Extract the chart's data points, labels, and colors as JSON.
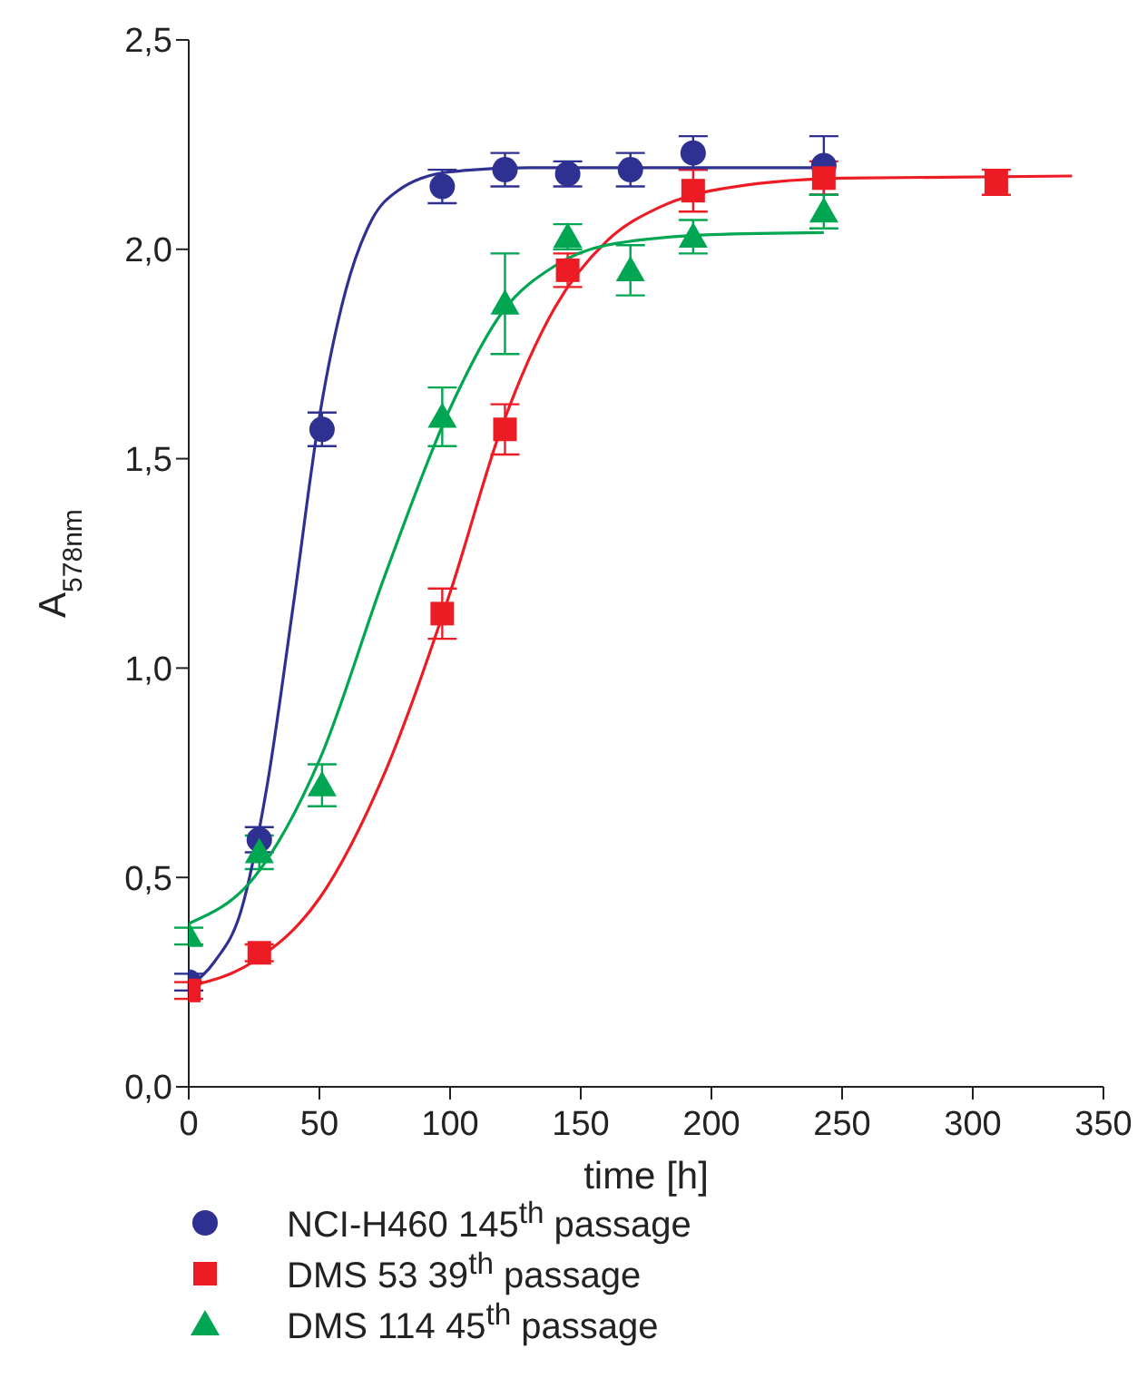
{
  "chart_data": {
    "type": "scatter",
    "xlabel": "time [h]",
    "ylabel": "A$_{578nm}$",
    "xlim": [
      0,
      350
    ],
    "xticks": [
      0,
      50,
      100,
      150,
      200,
      250,
      300,
      350
    ],
    "ylim": [
      0,
      2.5
    ],
    "yticks": [
      {
        "value": 0,
        "label": "0,0"
      },
      {
        "value": 0.5,
        "label": "0,5"
      },
      {
        "value": 1,
        "label": "1,0"
      },
      {
        "value": 1.5,
        "label": "1,5"
      },
      {
        "value": 2,
        "label": "2,0"
      },
      {
        "value": 2.5,
        "label": "2,5"
      }
    ],
    "grid": false,
    "legend": "bottom",
    "series": [
      {
        "name": "NCI-H460 145$^{th}$ passage",
        "color": "#2e3192",
        "marker": "circle",
        "x": [
          0,
          27,
          51,
          97,
          121,
          145,
          169,
          193,
          243
        ],
        "values": [
          0.25,
          0.59,
          1.57,
          2.15,
          2.19,
          2.18,
          2.19,
          2.23,
          2.2
        ],
        "errors": [
          0.02,
          0.03,
          0.04,
          0.04,
          0.04,
          0.03,
          0.04,
          0.04,
          0.07
        ]
      },
      {
        "name": "DMS 53 39$^{th}$ passage",
        "color": "#ed1c24",
        "marker": "square",
        "x": [
          0,
          27,
          97,
          121,
          145,
          193,
          243,
          309
        ],
        "values": [
          0.23,
          0.32,
          1.13,
          1.57,
          1.95,
          2.14,
          2.17,
          2.16
        ],
        "errors": [
          0.02,
          0.02,
          0.06,
          0.06,
          0.04,
          0.05,
          0.04,
          0.03
        ]
      },
      {
        "name": "DMS 114 45$^{th}$ passage",
        "color": "#00a651",
        "marker": "triangle",
        "x": [
          0,
          27,
          51,
          97,
          121,
          145,
          169,
          193,
          243
        ],
        "values": [
          0.36,
          0.56,
          0.72,
          1.6,
          1.87,
          2.03,
          1.95,
          2.03,
          2.09
        ],
        "errors": [
          0.02,
          0.04,
          0.05,
          0.07,
          0.12,
          0.03,
          0.06,
          0.04,
          0.04
        ]
      },
      {
        "color": "#2e3192",
        "type": "line",
        "marker": "none",
        "x": [
          0,
          10,
          20,
          30,
          40,
          50,
          60,
          70,
          80,
          100,
          130,
          245
        ],
        "values": [
          0.24,
          0.3,
          0.42,
          0.72,
          1.15,
          1.6,
          1.9,
          2.07,
          2.14,
          2.185,
          2.195,
          2.195
        ]
      },
      {
        "color": "#ed1c24",
        "type": "line",
        "marker": "none",
        "x": [
          0,
          25,
          50,
          75,
          100,
          120,
          140,
          160,
          180,
          200,
          250,
          338
        ],
        "values": [
          0.24,
          0.3,
          0.45,
          0.75,
          1.18,
          1.58,
          1.86,
          2.02,
          2.1,
          2.14,
          2.17,
          2.175
        ]
      },
      {
        "color": "#00a651",
        "type": "line",
        "marker": "none",
        "x": [
          0,
          25,
          50,
          75,
          100,
          120,
          140,
          160,
          200,
          243
        ],
        "values": [
          0.39,
          0.5,
          0.78,
          1.22,
          1.62,
          1.85,
          1.96,
          2.01,
          2.035,
          2.04
        ]
      }
    ]
  }
}
